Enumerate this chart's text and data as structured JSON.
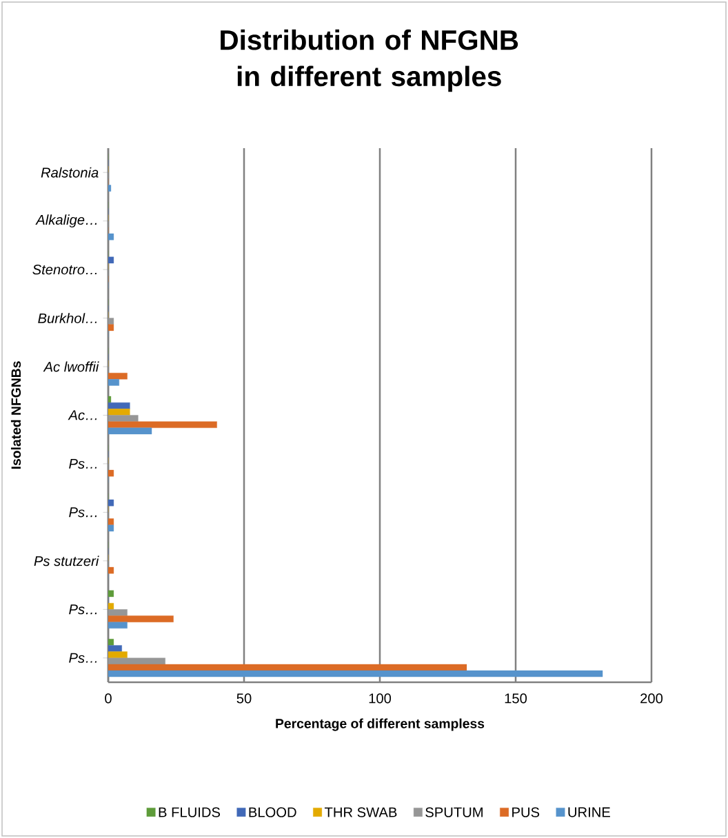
{
  "chart_data": {
    "type": "bar",
    "orientation": "horizontal",
    "title": "Distribution of NFGNB in different samples",
    "xlabel": "Percentage of different sampless",
    "ylabel": "Isolated NFGNBs",
    "categories": [
      "Ralstonia",
      "Alkalige…",
      "Stenotro…",
      "Burkhol…",
      "Ac lwoffii",
      "Ac…",
      "Ps…",
      "Ps…",
      "Ps stutzeri",
      "Ps…",
      "Ps…"
    ],
    "series": [
      {
        "name": "B FLUIDS",
        "color": "#5e9c3a",
        "values": [
          0,
          0,
          0,
          0,
          0,
          1,
          0,
          0,
          0,
          2,
          2
        ]
      },
      {
        "name": "BLOOD",
        "color": "#4169b8",
        "values": [
          0,
          0,
          2,
          0,
          0,
          8,
          0,
          2,
          0,
          0,
          5
        ]
      },
      {
        "name": "THR SWAB",
        "color": "#e3aa00",
        "values": [
          0,
          0,
          0,
          0,
          0,
          8,
          0,
          0,
          0,
          2,
          7
        ]
      },
      {
        "name": "SPUTUM",
        "color": "#969696",
        "values": [
          0,
          0,
          0,
          2,
          0,
          11,
          0,
          0,
          0,
          7,
          21
        ]
      },
      {
        "name": "PUS",
        "color": "#dc6b25",
        "values": [
          0,
          0,
          0,
          2,
          7,
          40,
          2,
          2,
          2,
          24,
          132
        ]
      },
      {
        "name": "URINE",
        "color": "#5693cc",
        "values": [
          1,
          2,
          0,
          0,
          4,
          16,
          0,
          2,
          0,
          7,
          182
        ]
      }
    ],
    "xlim": [
      0,
      200
    ],
    "xticks": [
      0,
      50,
      100,
      150,
      200
    ],
    "grid": "x",
    "legend": "bottom"
  }
}
